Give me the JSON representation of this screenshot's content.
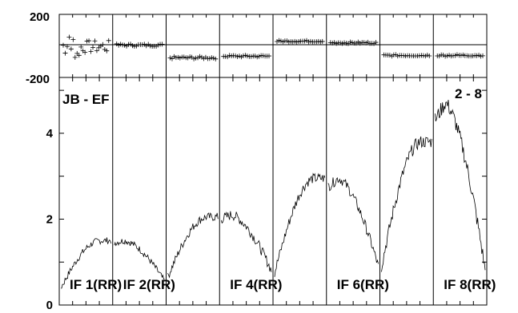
{
  "chart_data": {
    "type": "line",
    "baseline_label": "JB - EF",
    "baseline_corner_label": "2 - 8",
    "phase_panel": {
      "ylim": [
        -200,
        200
      ],
      "y_tick_labels": [
        "200",
        "-200"
      ],
      "subband_phase_deg": [
        -5,
        5,
        -75,
        -65,
        30,
        20,
        -60,
        -60
      ],
      "subband_phase_scatter_deg": [
        40,
        8,
        8,
        6,
        5,
        5,
        5,
        5
      ]
    },
    "amplitude_panel": {
      "ylim": [
        0,
        5.3
      ],
      "y_tick_labels": [
        "0",
        "2",
        "4"
      ],
      "y_tick_values": [
        0,
        2,
        4
      ]
    },
    "subbands": [
      {
        "label": "IF 1(RR)",
        "amp_start": 0.4,
        "amp_peak": 1.5,
        "amp_end": 1.5,
        "noise": 0.08
      },
      {
        "label": "IF 2(RR)",
        "amp_start": 1.45,
        "amp_peak": 1.5,
        "amp_end": 0.55,
        "noise": 0.08
      },
      {
        "label": "",
        "amp_start": 0.65,
        "amp_peak": 2.05,
        "amp_end": 2.05,
        "noise": 0.1
      },
      {
        "label": "IF 4(RR)",
        "amp_start": 2.0,
        "amp_peak": 2.1,
        "amp_end": 0.8,
        "noise": 0.12
      },
      {
        "label": "",
        "amp_start": 0.75,
        "amp_peak": 2.95,
        "amp_end": 2.9,
        "noise": 0.12
      },
      {
        "label": "IF 6(RR)",
        "amp_start": 2.75,
        "amp_peak": 2.95,
        "amp_end": 0.9,
        "noise": 0.12
      },
      {
        "label": "",
        "amp_start": 0.9,
        "amp_peak": 3.8,
        "amp_end": 3.5,
        "noise": 0.15
      },
      {
        "label": "IF 8(RR)",
        "amp_start": 4.3,
        "amp_peak": 4.7,
        "amp_end": 0.8,
        "noise": 0.18
      }
    ]
  }
}
